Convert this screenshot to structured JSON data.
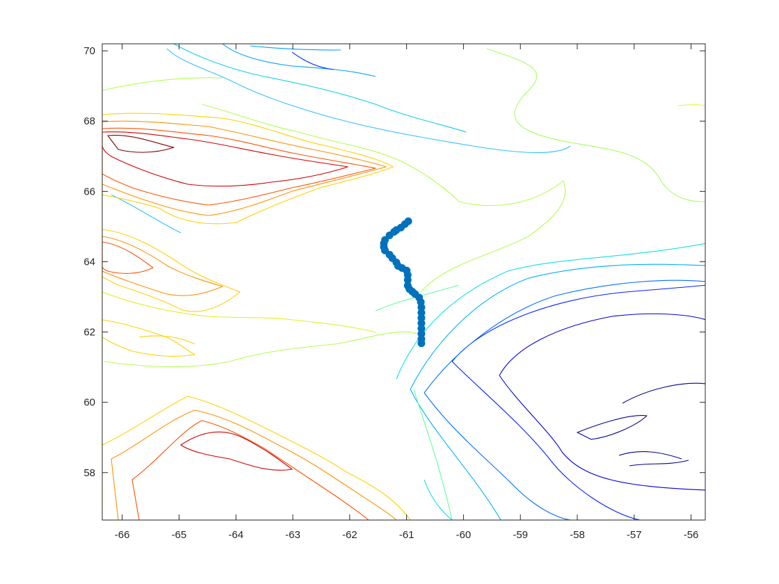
{
  "chart_data": {
    "type": "scatter",
    "title": "",
    "xlabel": "",
    "ylabel": "",
    "xlim": [
      -66.35,
      -55.75
    ],
    "ylim": [
      56.65,
      70.2
    ],
    "x_ticks": [
      -66,
      -65,
      -64,
      -63,
      -62,
      -61,
      -60,
      -59,
      -58,
      -57,
      -56
    ],
    "y_ticks": [
      58,
      60,
      62,
      64,
      66,
      68,
      70
    ],
    "grid": false,
    "legend": "none",
    "background_type": "bathymetry contour lines (jet colormap)",
    "track": {
      "color": "#0072BD",
      "marker": "filled-circle",
      "points": [
        {
          "x": -60.97,
          "y": 65.15
        },
        {
          "x": -61.03,
          "y": 65.07
        },
        {
          "x": -61.1,
          "y": 64.97
        },
        {
          "x": -61.18,
          "y": 64.9
        },
        {
          "x": -61.22,
          "y": 64.85
        },
        {
          "x": -61.3,
          "y": 64.75
        },
        {
          "x": -61.38,
          "y": 64.62
        },
        {
          "x": -61.4,
          "y": 64.52
        },
        {
          "x": -61.4,
          "y": 64.42
        },
        {
          "x": -61.38,
          "y": 64.32
        },
        {
          "x": -61.3,
          "y": 64.2
        },
        {
          "x": -61.25,
          "y": 64.1
        },
        {
          "x": -61.18,
          "y": 63.98
        },
        {
          "x": -61.15,
          "y": 63.88
        },
        {
          "x": -61.08,
          "y": 63.82
        },
        {
          "x": -61.0,
          "y": 63.75
        },
        {
          "x": -60.98,
          "y": 63.62
        },
        {
          "x": -60.98,
          "y": 63.48
        },
        {
          "x": -60.98,
          "y": 63.32
        },
        {
          "x": -60.95,
          "y": 63.22
        },
        {
          "x": -60.9,
          "y": 63.15
        },
        {
          "x": -60.85,
          "y": 63.08
        },
        {
          "x": -60.78,
          "y": 62.98
        },
        {
          "x": -60.75,
          "y": 62.85
        },
        {
          "x": -60.74,
          "y": 62.7
        },
        {
          "x": -60.74,
          "y": 62.55
        },
        {
          "x": -60.74,
          "y": 62.4
        },
        {
          "x": -60.74,
          "y": 62.25
        },
        {
          "x": -60.74,
          "y": 62.1
        },
        {
          "x": -60.74,
          "y": 61.95
        },
        {
          "x": -60.74,
          "y": 61.8
        },
        {
          "x": -60.74,
          "y": 61.68
        }
      ]
    }
  }
}
